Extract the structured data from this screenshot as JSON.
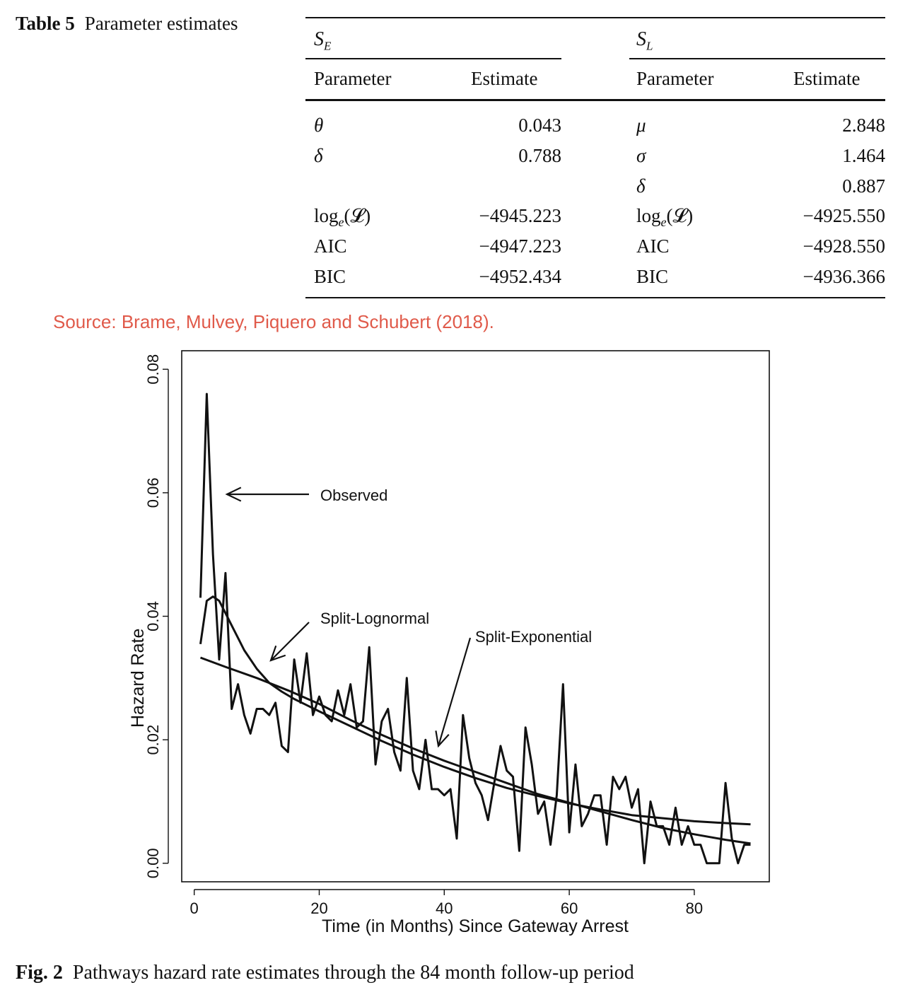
{
  "table": {
    "label": "Table 5",
    "title": "Parameter estimates",
    "groups": [
      {
        "symbol": "S",
        "subscript": "E"
      },
      {
        "symbol": "S",
        "subscript": "L"
      }
    ],
    "col_param": "Parameter",
    "col_estimate": "Estimate",
    "left_rows": [
      {
        "param": "θ",
        "estimate": "0.043"
      },
      {
        "param": "δ",
        "estimate": "0.788"
      },
      {
        "param": "",
        "estimate": ""
      },
      {
        "param": "log",
        "param_sub": "e",
        "param_rest": "(𝓛)",
        "estimate": "−4945.223"
      },
      {
        "param": "AIC",
        "estimate": "−4947.223"
      },
      {
        "param": "BIC",
        "estimate": "−4952.434"
      }
    ],
    "right_rows": [
      {
        "param": "μ",
        "estimate": "2.848"
      },
      {
        "param": "σ",
        "estimate": "1.464"
      },
      {
        "param": "δ",
        "estimate": "0.887"
      },
      {
        "param": "log",
        "param_sub": "e",
        "param_rest": "(𝓛)",
        "estimate": "−4925.550"
      },
      {
        "param": "AIC",
        "estimate": "−4928.550"
      },
      {
        "param": "BIC",
        "estimate": "−4936.366"
      }
    ]
  },
  "source": "Source: Brame, Mulvey, Piquero and Schubert (2018).",
  "figure_caption": {
    "label": "Fig. 2",
    "text": "Pathways hazard rate estimates through the 84 month follow-up period"
  },
  "chart_data": {
    "type": "line",
    "xlabel": "Time (in Months) Since Gateway Arrest",
    "ylabel": "Hazard Rate",
    "xlim": [
      -2,
      92
    ],
    "ylim": [
      -0.003,
      0.083
    ],
    "xticks": [
      0,
      20,
      40,
      60,
      80
    ],
    "yticks": [
      0.0,
      0.02,
      0.04,
      0.06,
      0.08
    ],
    "ytick_labels": [
      "0.00",
      "0.02",
      "0.04",
      "0.06",
      "0.08"
    ],
    "grid": false,
    "series": [
      {
        "name": "Observed",
        "x": [
          1,
          2,
          3,
          4,
          5,
          6,
          7,
          8,
          9,
          10,
          11,
          12,
          13,
          14,
          15,
          16,
          17,
          18,
          19,
          20,
          21,
          22,
          23,
          24,
          25,
          26,
          27,
          28,
          29,
          30,
          31,
          32,
          33,
          34,
          35,
          36,
          37,
          38,
          39,
          40,
          41,
          42,
          43,
          44,
          45,
          46,
          47,
          48,
          49,
          50,
          51,
          52,
          53,
          54,
          55,
          56,
          57,
          58,
          59,
          60,
          61,
          62,
          63,
          64,
          65,
          66,
          67,
          68,
          69,
          70,
          71,
          72,
          73,
          74,
          75,
          76,
          77,
          78,
          79,
          80,
          81,
          82,
          83,
          84,
          85,
          86,
          87,
          88,
          89
        ],
        "values": [
          0.043,
          0.076,
          0.05,
          0.033,
          0.047,
          0.025,
          0.029,
          0.024,
          0.021,
          0.025,
          0.025,
          0.024,
          0.026,
          0.019,
          0.018,
          0.033,
          0.026,
          0.034,
          0.024,
          0.027,
          0.024,
          0.023,
          0.028,
          0.024,
          0.029,
          0.022,
          0.023,
          0.035,
          0.016,
          0.023,
          0.025,
          0.018,
          0.015,
          0.03,
          0.015,
          0.012,
          0.02,
          0.012,
          0.012,
          0.011,
          0.012,
          0.004,
          0.024,
          0.017,
          0.013,
          0.011,
          0.007,
          0.013,
          0.019,
          0.015,
          0.014,
          0.002,
          0.022,
          0.016,
          0.008,
          0.01,
          0.003,
          0.011,
          0.029,
          0.005,
          0.016,
          0.006,
          0.008,
          0.011,
          0.011,
          0.003,
          0.014,
          0.012,
          0.014,
          0.009,
          0.012,
          0.0,
          0.01,
          0.006,
          0.006,
          0.003,
          0.009,
          0.003,
          0.006,
          0.003,
          0.003,
          0.0,
          0.0,
          0.0,
          0.013,
          0.004,
          0.0,
          0.003,
          0.003
        ]
      },
      {
        "name": "Split-Lognormal",
        "x": [
          1,
          2,
          3,
          4,
          5,
          6,
          7,
          8,
          10,
          12,
          14,
          16,
          18,
          20,
          25,
          30,
          35,
          40,
          45,
          50,
          55,
          60,
          65,
          70,
          75,
          80,
          85,
          89
        ],
        "values": [
          0.0355,
          0.0425,
          0.0432,
          0.0425,
          0.0405,
          0.0385,
          0.0365,
          0.0345,
          0.0315,
          0.0292,
          0.0278,
          0.0266,
          0.0256,
          0.0246,
          0.0222,
          0.0198,
          0.0176,
          0.0156,
          0.0138,
          0.0122,
          0.0109,
          0.0097,
          0.0087,
          0.0078,
          0.0073,
          0.0068,
          0.0065,
          0.0063
        ]
      },
      {
        "name": "Split-Exponential",
        "x": [
          1,
          5,
          10,
          15,
          20,
          25,
          30,
          35,
          40,
          45,
          50,
          55,
          60,
          65,
          70,
          75,
          80,
          85,
          89
        ],
        "values": [
          0.0333,
          0.0318,
          0.03,
          0.028,
          0.0258,
          0.0232,
          0.0208,
          0.0186,
          0.0166,
          0.0148,
          0.013,
          0.0112,
          0.0098,
          0.0084,
          0.007,
          0.0057,
          0.0047,
          0.0038,
          0.0032
        ]
      }
    ],
    "annotations": [
      "Observed",
      "Split-Lognormal",
      "Split-Exponential"
    ]
  }
}
